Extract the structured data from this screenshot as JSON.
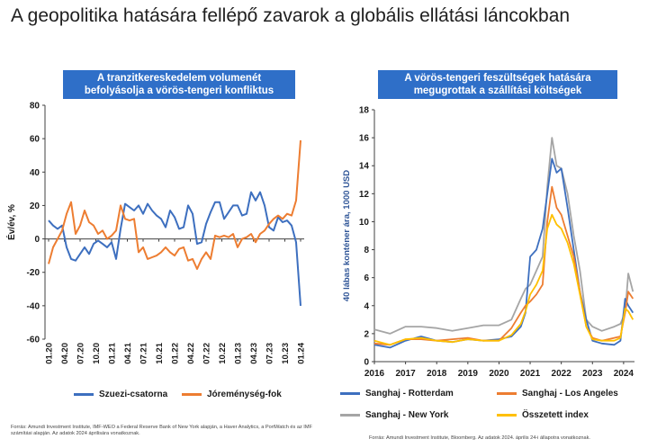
{
  "page_title": "A geopolitika hatására fellépő zavarok a globális ellátási láncokban",
  "left_chart": {
    "title_line1": "A tranzitkereskedelem volumenét",
    "title_line2": "befolyásolja a vörös-tengeri konfliktus",
    "source": "Forrás: Amundi Investment Institute, IMF-WEO a Federal Reserve Bank of New York alapján, a Haver Analytics, a PortWatch és az IMF számítási alapján. Az adatok 2024 áprilisára vonatkoznak."
  },
  "right_chart": {
    "title_line1": "A vörös-tengeri feszültségek hatására",
    "title_line2": "megugrottak a szállítási költségek",
    "source": "Forrás: Amundi Investment Institute, Bloomberg. Az adatok 2024. április 24-i állapotra vonatkoznak."
  },
  "colors": {
    "title_box": "#2f6fc8",
    "blue": "#3d6fbf",
    "orange": "#ed7d31",
    "gray": "#a5a5a5",
    "yellow": "#ffc000"
  },
  "chart_data": [
    {
      "type": "line",
      "title": "A tranzitkereskedelem volumenét befolyásolja a vörös-tengeri konfliktus",
      "ylabel": "Év/év, %",
      "ylim": [
        -60,
        80
      ],
      "yticks": [
        -60,
        -40,
        -20,
        0,
        20,
        40,
        60,
        80
      ],
      "xlabels": [
        "01.20",
        "04.20",
        "07.20",
        "10.20",
        "01.21",
        "04.21",
        "07.21",
        "10.21",
        "01.22",
        "04.22",
        "07.22",
        "10.22",
        "01.23",
        "04.23",
        "07.23",
        "10.23",
        "01.24"
      ],
      "legend_position": "bottom",
      "series": [
        {
          "name": "Szuezi-csatorna",
          "color": "#3d6fbf",
          "values": [
            11,
            8,
            6,
            8,
            -5,
            -12,
            -13,
            -9,
            -5,
            -9,
            -3,
            -1,
            -3,
            -5,
            -2,
            -12,
            6,
            21,
            19,
            17,
            20,
            15,
            21,
            17,
            14,
            12,
            7,
            17,
            13,
            6,
            7,
            20,
            15,
            -3,
            -2,
            9,
            16,
            22,
            22,
            12,
            16,
            20,
            20,
            14,
            15,
            28,
            23,
            28,
            20,
            7,
            5,
            13,
            10,
            11,
            8,
            -2,
            -40
          ]
        },
        {
          "name": "Jóreménység-fok",
          "color": "#ed7d31",
          "values": [
            -15,
            -5,
            0,
            5,
            15,
            22,
            3,
            8,
            17,
            10,
            8,
            3,
            5,
            0,
            2,
            5,
            20,
            12,
            11,
            12,
            -8,
            -5,
            -12,
            -11,
            -10,
            -8,
            -5,
            -8,
            -10,
            -6,
            -5,
            -13,
            -12,
            -18,
            -12,
            -8,
            -12,
            2,
            1,
            2,
            1,
            3,
            -5,
            0,
            1,
            3,
            -2,
            3,
            5,
            9,
            12,
            14,
            12,
            15,
            14,
            23,
            59
          ]
        }
      ]
    },
    {
      "type": "line",
      "title": "A vörös-tengeri feszültségek hatására megugrottak a szállítási költségek",
      "ylabel": "40 lábas konténer ára, 1000 USD",
      "ylim": [
        0,
        18
      ],
      "yticks": [
        0,
        2,
        4,
        6,
        8,
        10,
        12,
        14,
        16,
        18
      ],
      "x": [
        2016.0,
        2016.5,
        2017.0,
        2017.5,
        2018.0,
        2018.5,
        2019.0,
        2019.5,
        2020.0,
        2020.4,
        2020.7,
        2020.85,
        2021.0,
        2021.2,
        2021.4,
        2021.55,
        2021.7,
        2021.85,
        2022.0,
        2022.2,
        2022.4,
        2022.6,
        2022.8,
        2023.0,
        2023.3,
        2023.7,
        2023.9,
        2024.05,
        2024.15,
        2024.3
      ],
      "xticks": [
        2016,
        2017,
        2018,
        2019,
        2020,
        2021,
        2022,
        2023,
        2024
      ],
      "xlim": [
        2016,
        2024.35
      ],
      "legend_position": "bottom",
      "series": [
        {
          "name": "Sanghaj - Rotterdam",
          "color": "#3d6fbf",
          "values": [
            1.2,
            1.0,
            1.5,
            1.8,
            1.5,
            1.4,
            1.6,
            1.5,
            1.6,
            1.8,
            2.5,
            3.5,
            7.5,
            8.0,
            9.5,
            12.0,
            14.5,
            13.5,
            13.8,
            11.0,
            8.0,
            5.0,
            3.0,
            1.5,
            1.3,
            1.2,
            1.5,
            4.5,
            4.0,
            3.5
          ]
        },
        {
          "name": "Sanghaj - Los Angeles",
          "color": "#ed7d31",
          "values": [
            1.3,
            1.2,
            1.6,
            1.6,
            1.5,
            1.6,
            1.7,
            1.5,
            1.5,
            2.4,
            3.5,
            4.0,
            4.3,
            4.8,
            5.5,
            10.0,
            12.5,
            11.0,
            10.5,
            9.0,
            7.5,
            5.0,
            2.5,
            1.7,
            1.5,
            1.7,
            1.8,
            3.5,
            5.0,
            4.5
          ]
        },
        {
          "name": "Sanghaj - New York",
          "color": "#a5a5a5",
          "values": [
            2.3,
            2.0,
            2.5,
            2.5,
            2.4,
            2.2,
            2.4,
            2.6,
            2.6,
            3.0,
            4.5,
            5.2,
            5.5,
            6.5,
            7.5,
            12.5,
            16.0,
            14.0,
            13.8,
            12.0,
            9.0,
            6.5,
            3.0,
            2.5,
            2.2,
            2.5,
            2.7,
            3.5,
            6.3,
            5.0
          ]
        },
        {
          "name": "Összetett index",
          "color": "#ffc000",
          "values": [
            1.5,
            1.2,
            1.6,
            1.7,
            1.5,
            1.4,
            1.6,
            1.5,
            1.5,
            1.9,
            2.7,
            3.6,
            4.8,
            5.5,
            6.5,
            9.5,
            10.5,
            9.8,
            9.5,
            8.5,
            7.0,
            4.8,
            2.5,
            1.6,
            1.5,
            1.5,
            1.7,
            3.8,
            3.6,
            3.0
          ]
        }
      ]
    }
  ]
}
